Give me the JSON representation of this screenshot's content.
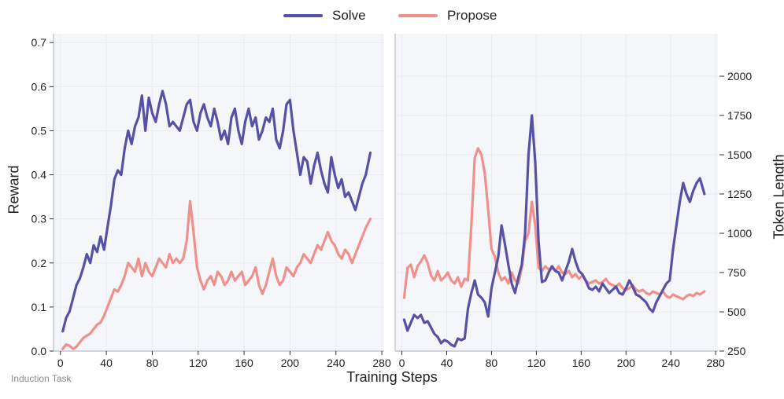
{
  "legend": {
    "solve_label": "Solve",
    "propose_label": "Propose"
  },
  "colors": {
    "solve": "#5552a4",
    "propose": "#f0908c",
    "plot_bg": "#f5f6f9",
    "grid": "#e9ebf0",
    "axis": "#b9bcc4"
  },
  "footnote": "Induction Task",
  "chart_data": [
    {
      "type": "line",
      "panel": "left",
      "title": "",
      "xlabel": "Training Steps",
      "ylabel": "Reward",
      "xlim": [
        -6,
        282
      ],
      "ylim": [
        0,
        0.72
      ],
      "xticks": [
        0,
        40,
        80,
        120,
        160,
        200,
        240,
        280
      ],
      "yticks": [
        0.0,
        0.1,
        0.2,
        0.3,
        0.4,
        0.5,
        0.6,
        0.7
      ],
      "ytick_labels": [
        "0.0",
        "0.1",
        "0.2",
        "0.3",
        "0.4",
        "0.5",
        "0.6",
        "0.7"
      ],
      "grid": true,
      "series": [
        {
          "name": "Solve",
          "x": [
            2,
            5,
            8,
            11,
            14,
            17,
            20,
            23,
            26,
            29,
            32,
            35,
            38,
            41,
            44,
            47,
            50,
            53,
            56,
            59,
            62,
            65,
            68,
            71,
            74,
            77,
            80,
            83,
            86,
            89,
            92,
            95,
            98,
            101,
            104,
            107,
            110,
            113,
            116,
            119,
            122,
            125,
            128,
            131,
            134,
            137,
            140,
            143,
            146,
            149,
            152,
            155,
            158,
            161,
            164,
            167,
            170,
            173,
            176,
            179,
            182,
            185,
            188,
            191,
            194,
            197,
            200,
            203,
            206,
            209,
            212,
            215,
            218,
            221,
            224,
            227,
            230,
            233,
            236,
            239,
            242,
            245,
            248,
            251,
            254,
            257,
            260,
            263,
            266,
            270
          ],
          "values": [
            0.045,
            0.075,
            0.09,
            0.12,
            0.15,
            0.165,
            0.19,
            0.22,
            0.2,
            0.24,
            0.225,
            0.26,
            0.23,
            0.28,
            0.33,
            0.39,
            0.41,
            0.4,
            0.46,
            0.5,
            0.47,
            0.51,
            0.53,
            0.58,
            0.5,
            0.575,
            0.54,
            0.52,
            0.56,
            0.59,
            0.56,
            0.51,
            0.52,
            0.51,
            0.5,
            0.53,
            0.56,
            0.57,
            0.52,
            0.5,
            0.54,
            0.56,
            0.53,
            0.51,
            0.55,
            0.52,
            0.48,
            0.5,
            0.47,
            0.53,
            0.55,
            0.5,
            0.47,
            0.52,
            0.55,
            0.51,
            0.53,
            0.48,
            0.5,
            0.53,
            0.52,
            0.55,
            0.48,
            0.46,
            0.5,
            0.56,
            0.57,
            0.5,
            0.45,
            0.4,
            0.44,
            0.43,
            0.38,
            0.42,
            0.45,
            0.41,
            0.38,
            0.36,
            0.44,
            0.4,
            0.37,
            0.39,
            0.35,
            0.36,
            0.34,
            0.32,
            0.35,
            0.38,
            0.4,
            0.45
          ]
        },
        {
          "name": "Propose",
          "x": [
            2,
            5,
            8,
            11,
            14,
            17,
            20,
            23,
            26,
            29,
            32,
            35,
            38,
            41,
            44,
            47,
            50,
            53,
            56,
            59,
            62,
            65,
            68,
            71,
            74,
            77,
            80,
            83,
            86,
            89,
            92,
            95,
            98,
            101,
            104,
            107,
            110,
            113,
            116,
            119,
            122,
            125,
            128,
            131,
            134,
            137,
            140,
            143,
            146,
            149,
            152,
            155,
            158,
            161,
            164,
            167,
            170,
            173,
            176,
            179,
            182,
            185,
            188,
            191,
            194,
            197,
            200,
            203,
            206,
            209,
            212,
            215,
            218,
            221,
            224,
            227,
            230,
            233,
            236,
            239,
            242,
            245,
            248,
            251,
            254,
            257,
            260,
            263,
            266,
            270
          ],
          "values": [
            0.005,
            0.015,
            0.012,
            0.005,
            0.01,
            0.02,
            0.03,
            0.035,
            0.04,
            0.05,
            0.06,
            0.065,
            0.08,
            0.1,
            0.12,
            0.14,
            0.135,
            0.15,
            0.17,
            0.2,
            0.19,
            0.18,
            0.21,
            0.17,
            0.2,
            0.18,
            0.17,
            0.19,
            0.21,
            0.2,
            0.19,
            0.22,
            0.2,
            0.21,
            0.2,
            0.21,
            0.25,
            0.34,
            0.27,
            0.19,
            0.16,
            0.14,
            0.16,
            0.17,
            0.15,
            0.18,
            0.17,
            0.15,
            0.16,
            0.18,
            0.16,
            0.17,
            0.18,
            0.15,
            0.16,
            0.17,
            0.19,
            0.15,
            0.13,
            0.15,
            0.18,
            0.21,
            0.17,
            0.15,
            0.16,
            0.19,
            0.18,
            0.17,
            0.19,
            0.2,
            0.22,
            0.21,
            0.2,
            0.22,
            0.24,
            0.23,
            0.25,
            0.27,
            0.25,
            0.24,
            0.22,
            0.21,
            0.23,
            0.22,
            0.2,
            0.22,
            0.24,
            0.26,
            0.28,
            0.3
          ]
        }
      ]
    },
    {
      "type": "line",
      "panel": "right",
      "title": "",
      "xlabel": "Training Steps",
      "ylabel": "Token Length",
      "xlim": [
        -6,
        282
      ],
      "ylim": [
        250,
        2270
      ],
      "xticks": [
        0,
        40,
        80,
        120,
        160,
        200,
        240,
        280
      ],
      "yticks": [
        250,
        500,
        750,
        1000,
        1250,
        1500,
        1750,
        2000
      ],
      "ytick_labels": [
        "250",
        "500",
        "750",
        "1000",
        "1250",
        "1500",
        "1750",
        "2000"
      ],
      "grid": true,
      "series": [
        {
          "name": "Solve",
          "x": [
            2,
            5,
            8,
            11,
            14,
            17,
            20,
            23,
            26,
            29,
            32,
            35,
            38,
            41,
            44,
            47,
            50,
            53,
            56,
            59,
            62,
            65,
            68,
            71,
            74,
            77,
            80,
            83,
            86,
            89,
            92,
            95,
            98,
            101,
            104,
            107,
            110,
            113,
            116,
            119,
            122,
            125,
            128,
            131,
            134,
            137,
            140,
            143,
            146,
            149,
            152,
            155,
            158,
            161,
            164,
            167,
            170,
            173,
            176,
            179,
            182,
            185,
            188,
            191,
            194,
            197,
            200,
            203,
            206,
            209,
            212,
            215,
            218,
            221,
            224,
            227,
            230,
            233,
            236,
            239,
            242,
            245,
            248,
            251,
            254,
            257,
            260,
            263,
            266,
            270
          ],
          "values": [
            450,
            380,
            430,
            480,
            460,
            480,
            430,
            440,
            400,
            360,
            340,
            300,
            320,
            310,
            290,
            280,
            330,
            320,
            330,
            520,
            620,
            700,
            610,
            590,
            560,
            470,
            650,
            750,
            850,
            1050,
            930,
            800,
            680,
            620,
            720,
            800,
            1000,
            1500,
            1750,
            1450,
            950,
            690,
            700,
            750,
            790,
            760,
            750,
            700,
            760,
            820,
            900,
            820,
            760,
            740,
            700,
            650,
            640,
            660,
            630,
            680,
            650,
            620,
            640,
            660,
            620,
            610,
            650,
            700,
            660,
            610,
            600,
            580,
            560,
            520,
            500,
            560,
            600,
            640,
            680,
            700,
            900,
            1050,
            1200,
            1320,
            1250,
            1200,
            1270,
            1320,
            1350,
            1250
          ]
        },
        {
          "name": "Propose",
          "x": [
            2,
            5,
            8,
            11,
            14,
            17,
            20,
            23,
            26,
            29,
            32,
            35,
            38,
            41,
            44,
            47,
            50,
            53,
            56,
            59,
            62,
            65,
            68,
            71,
            74,
            77,
            80,
            83,
            86,
            89,
            92,
            95,
            98,
            101,
            104,
            107,
            110,
            113,
            116,
            119,
            122,
            125,
            128,
            131,
            134,
            137,
            140,
            143,
            146,
            149,
            152,
            155,
            158,
            161,
            164,
            167,
            170,
            173,
            176,
            179,
            182,
            185,
            188,
            191,
            194,
            197,
            200,
            203,
            206,
            209,
            212,
            215,
            218,
            221,
            224,
            227,
            230,
            233,
            236,
            239,
            242,
            245,
            248,
            251,
            254,
            257,
            260,
            263,
            266,
            270
          ],
          "values": [
            590,
            780,
            800,
            720,
            790,
            820,
            860,
            810,
            730,
            700,
            760,
            700,
            720,
            750,
            700,
            680,
            720,
            660,
            710,
            700,
            1050,
            1480,
            1540,
            1500,
            1380,
            1150,
            900,
            850,
            750,
            700,
            720,
            680,
            750,
            700,
            680,
            780,
            950,
            1000,
            1200,
            1050,
            780,
            760,
            790,
            770,
            780,
            760,
            790,
            750,
            740,
            760,
            720,
            740,
            710,
            730,
            700,
            680,
            690,
            700,
            680,
            690,
            710,
            680,
            670,
            660,
            680,
            650,
            640,
            650,
            670,
            640,
            630,
            640,
            620,
            610,
            630,
            620,
            610,
            630,
            600,
            590,
            610,
            600,
            590,
            580,
            600,
            610,
            600,
            620,
            610,
            630
          ]
        }
      ]
    }
  ]
}
